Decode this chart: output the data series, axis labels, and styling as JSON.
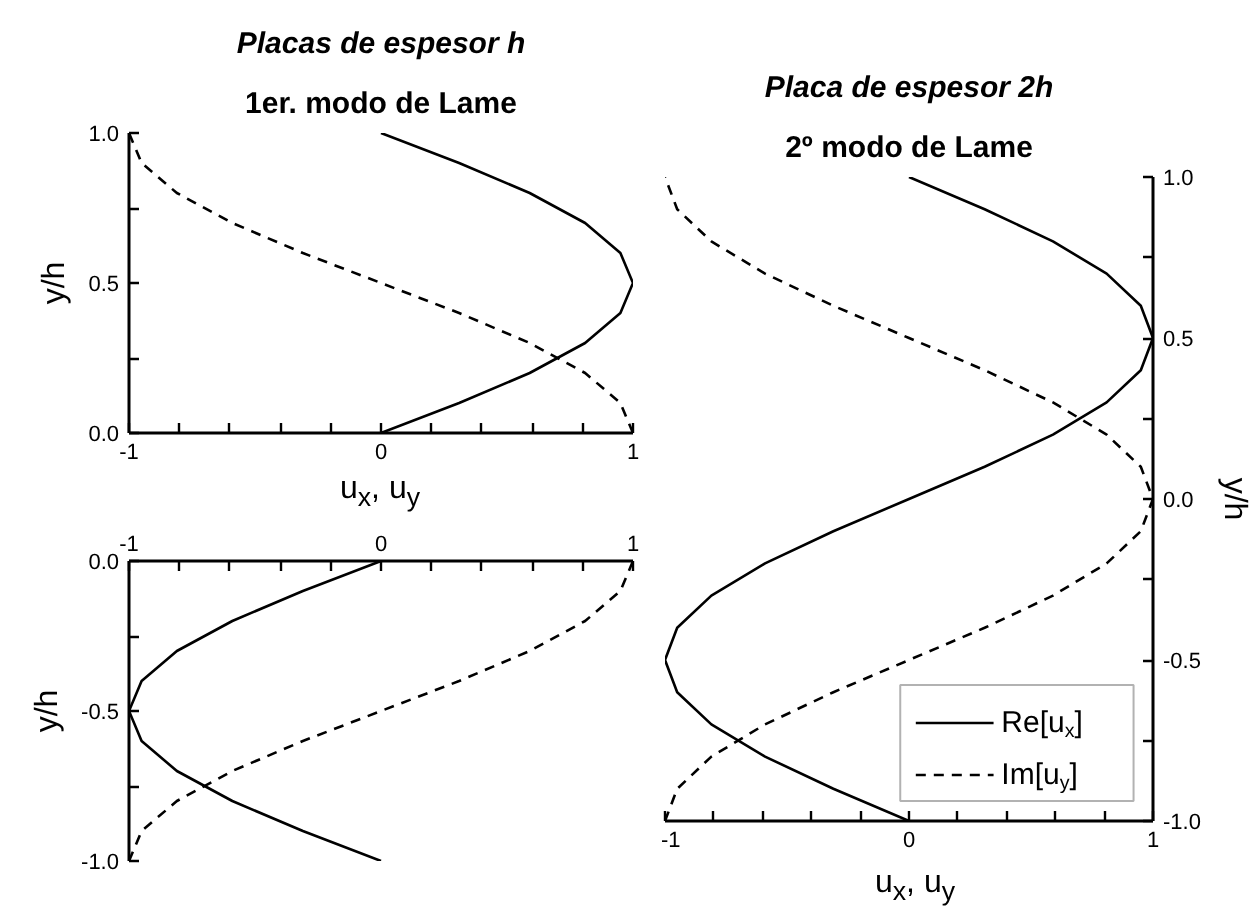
{
  "chart_data": [
    {
      "type": "line",
      "title": "Placas de espesor h",
      "subtitle": "1er. modo de Lame",
      "xlabel": "u$_{x}$, u$_{y}$",
      "ylabel": "y/h",
      "xlim": [
        -1,
        1
      ],
      "xticks": [
        -1,
        {
          "value": -0.8,
          "label": null
        },
        {
          "value": -0.6,
          "label": null
        },
        {
          "value": -0.4,
          "label": null
        },
        {
          "value": -0.2,
          "label": null
        },
        0,
        {
          "value": 0.2,
          "label": null
        },
        {
          "value": 0.4,
          "label": null
        },
        {
          "value": 0.6,
          "label": null
        },
        {
          "value": 0.8,
          "label": null
        },
        1
      ],
      "ylim": [
        0,
        1
      ],
      "yticks": [
        {
          "value": 0,
          "label": "0.0"
        },
        {
          "value": 0.25,
          "label": null
        },
        {
          "value": 0.5,
          "label": "0.5"
        },
        {
          "value": 0.75,
          "label": null
        },
        {
          "value": 1,
          "label": "1.0"
        }
      ],
      "grid": false,
      "legend": false,
      "series": [
        {
          "color": "#000000",
          "line_style": "solid",
          "x": [
            0,
            0.31,
            0.59,
            0.81,
            0.95,
            1,
            0.95,
            0.81,
            0.59,
            0.31,
            0
          ],
          "values": [
            0,
            0.1,
            0.2,
            0.3,
            0.4,
            0.5,
            0.6,
            0.7,
            0.8,
            0.9,
            1
          ]
        },
        {
          "color": "#000000",
          "line_style": "dashed",
          "x": [
            1,
            0.95,
            0.81,
            0.59,
            0.31,
            0,
            -0.31,
            -0.59,
            -0.81,
            -0.95,
            -1
          ],
          "values": [
            0,
            0.1,
            0.2,
            0.3,
            0.4,
            0.5,
            0.6,
            0.7,
            0.8,
            0.9,
            1
          ]
        }
      ]
    },
    {
      "type": "line",
      "ylabel": "y/h",
      "xlim": [
        -1,
        1
      ],
      "xticks": [
        -1,
        {
          "value": -0.8,
          "label": null
        },
        {
          "value": -0.6,
          "label": null
        },
        {
          "value": -0.4,
          "label": null
        },
        {
          "value": -0.2,
          "label": null
        },
        0,
        {
          "value": 0.2,
          "label": null
        },
        {
          "value": 0.4,
          "label": null
        },
        {
          "value": 0.6,
          "label": null
        },
        {
          "value": 0.8,
          "label": null
        },
        1
      ],
      "ylim": [
        -1,
        0
      ],
      "yticks": [
        {
          "value": -1,
          "label": "-1.0"
        },
        {
          "value": -0.75,
          "label": null
        },
        {
          "value": -0.5,
          "label": "-0.5"
        },
        {
          "value": -0.25,
          "label": null
        },
        {
          "value": 0,
          "label": "0.0"
        }
      ],
      "grid": false,
      "legend": false,
      "series": [
        {
          "color": "#000000",
          "line_style": "solid",
          "x": [
            0,
            -0.31,
            -0.59,
            -0.81,
            -0.95,
            -1,
            -0.95,
            -0.81,
            -0.59,
            -0.31,
            0
          ],
          "values": [
            -1,
            -0.9,
            -0.8,
            -0.7,
            -0.6,
            -0.5,
            -0.4,
            -0.3,
            -0.2,
            -0.1,
            0
          ]
        },
        {
          "color": "#000000",
          "line_style": "dashed",
          "x": [
            -1,
            -0.95,
            -0.81,
            -0.59,
            -0.31,
            0,
            0.31,
            0.59,
            0.81,
            0.95,
            1
          ],
          "values": [
            -1,
            -0.9,
            -0.8,
            -0.7,
            -0.6,
            -0.5,
            -0.4,
            -0.3,
            -0.2,
            -0.1,
            0
          ]
        }
      ]
    },
    {
      "type": "line",
      "title": "Placa de espesor 2h",
      "subtitle": "2º modo de Lame",
      "xlabel": "u$_{x}$, u$_{y}$",
      "y2label": "y/h",
      "xlim": [
        -1,
        1
      ],
      "xticks": [
        -1,
        {
          "value": -0.8,
          "label": null
        },
        {
          "value": -0.6,
          "label": null
        },
        {
          "value": -0.4,
          "label": null
        },
        {
          "value": -0.2,
          "label": null
        },
        0,
        {
          "value": 0.2,
          "label": null
        },
        {
          "value": 0.4,
          "label": null
        },
        {
          "value": 0.6,
          "label": null
        },
        {
          "value": 0.8,
          "label": null
        },
        1
      ],
      "y2lim": [
        -1,
        1
      ],
      "y2ticks": [
        {
          "value": -1,
          "label": "-1.0"
        },
        {
          "value": -0.75,
          "label": null
        },
        {
          "value": -0.5,
          "label": "-0.5"
        },
        {
          "value": -0.25,
          "label": null
        },
        {
          "value": 0,
          "label": "0.0"
        },
        {
          "value": 0.25,
          "label": null
        },
        {
          "value": 0.5,
          "label": "0.5"
        },
        {
          "value": 0.75,
          "label": null
        },
        {
          "value": 1,
          "label": "1.0"
        }
      ],
      "grid": false,
      "legend": "bottom right",
      "series": [
        {
          "name": "Re[u$_{x}$]",
          "color": "#000000",
          "line_style": "solid",
          "axis": "y2",
          "x": [
            0,
            -0.31,
            -0.59,
            -0.81,
            -0.95,
            -1,
            -0.95,
            -0.81,
            -0.59,
            -0.31,
            0,
            0.31,
            0.59,
            0.81,
            0.95,
            1,
            0.95,
            0.81,
            0.59,
            0.31,
            0
          ],
          "values": [
            -1,
            -0.9,
            -0.8,
            -0.7,
            -0.6,
            -0.5,
            -0.4,
            -0.3,
            -0.2,
            -0.1,
            0,
            0.1,
            0.2,
            0.3,
            0.4,
            0.5,
            0.6,
            0.7,
            0.8,
            0.9,
            1
          ]
        },
        {
          "name": "Im[u$_{y}$]",
          "color": "#000000",
          "line_style": "dashed",
          "axis": "y2",
          "x": [
            -1,
            -0.95,
            -0.81,
            -0.59,
            -0.31,
            0,
            0.31,
            0.59,
            0.81,
            0.95,
            1,
            0.95,
            0.81,
            0.59,
            0.31,
            0,
            -0.31,
            -0.59,
            -0.81,
            -0.95,
            -1
          ],
          "values": [
            -1,
            -0.9,
            -0.8,
            -0.7,
            -0.6,
            -0.5,
            -0.4,
            -0.3,
            -0.2,
            -0.1,
            0,
            0.1,
            0.2,
            0.3,
            0.4,
            0.5,
            0.6,
            0.7,
            0.8,
            0.9,
            1
          ]
        }
      ]
    }
  ]
}
